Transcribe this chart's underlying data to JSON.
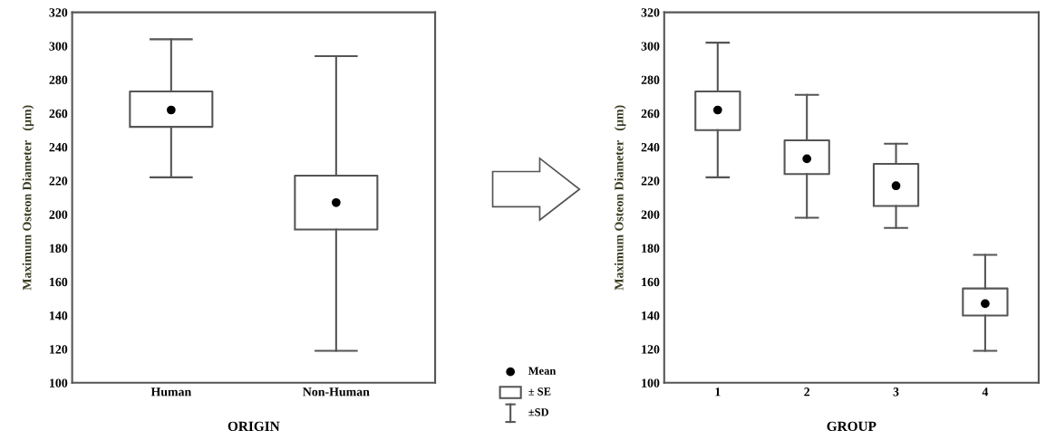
{
  "chart_data": [
    {
      "type": "box",
      "xlabel": "ORIGIN",
      "ylabel": "Maximum Osteon Diameter   (µm)",
      "categories": [
        "Human",
        "Non-Human"
      ],
      "boxes": [
        {
          "low": 222,
          "q1": 252,
          "q3": 273,
          "high": 304,
          "mean": 262
        },
        {
          "low": 119,
          "q1": 191,
          "q3": 223,
          "high": 294,
          "mean": 207
        }
      ],
      "ylim": [
        100,
        320
      ],
      "yticks": [
        100,
        120,
        140,
        160,
        180,
        200,
        220,
        240,
        260,
        280,
        300,
        320
      ],
      "grid": false,
      "annotations": [
        "Mean",
        "± SE",
        "±SD"
      ]
    },
    {
      "type": "box",
      "xlabel": "GROUP",
      "ylabel": "Maximum Osteon Diameter   (µm)",
      "categories": [
        "1",
        "2",
        "3",
        "4"
      ],
      "boxes": [
        {
          "low": 222,
          "q1": 250,
          "q3": 273,
          "high": 302,
          "mean": 262
        },
        {
          "low": 198,
          "q1": 224,
          "q3": 244,
          "high": 271,
          "mean": 233
        },
        {
          "low": 192,
          "q1": 205,
          "q3": 230,
          "high": 242,
          "mean": 217
        },
        {
          "low": 119,
          "q1": 140,
          "q3": 156,
          "high": 176,
          "mean": 147
        }
      ],
      "ylim": [
        100,
        320
      ],
      "yticks": [
        100,
        120,
        140,
        160,
        180,
        200,
        220,
        240,
        260,
        280,
        300,
        320
      ],
      "grid": false
    }
  ]
}
